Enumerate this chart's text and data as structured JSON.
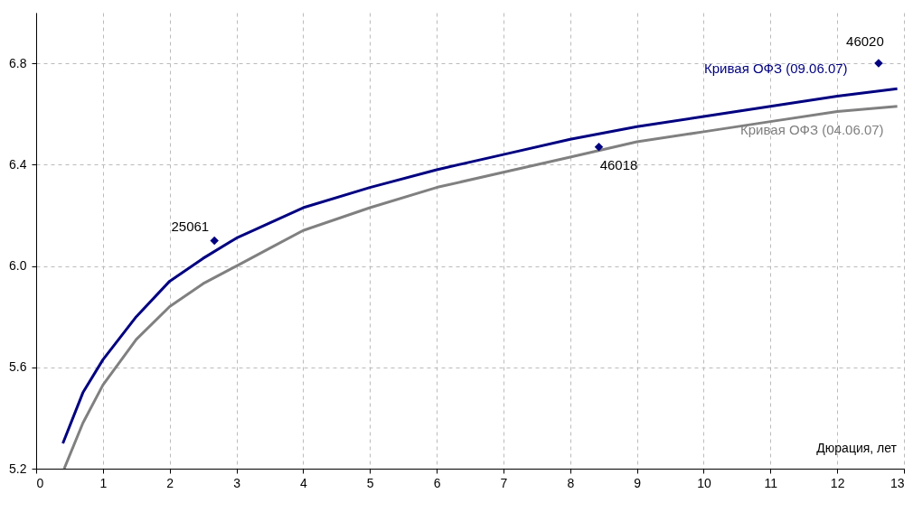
{
  "chart_data": {
    "type": "line",
    "xlabel": "Дюрация, лет",
    "xlim": [
      0,
      13
    ],
    "xticks": [
      0,
      1,
      2,
      3,
      4,
      5,
      6,
      7,
      8,
      9,
      10,
      11,
      12,
      13
    ],
    "ylim": [
      5.2,
      7.0
    ],
    "yticks": [
      5.2,
      5.6,
      {
        "value": 6,
        "label": "6.0"
      },
      6.4,
      6.8
    ],
    "grid": true,
    "legend": false,
    "line_style": "solid",
    "series": [
      {
        "name": "Кривая ОФЗ (09.06.07)",
        "color": "#000080",
        "x": [
          0.4,
          0.7,
          1,
          1.5,
          2,
          2.5,
          3,
          3.5,
          4,
          5,
          6,
          7,
          8,
          9,
          10,
          11,
          12,
          12.9
        ],
        "values": [
          5.3,
          5.5,
          5.63,
          5.8,
          5.94,
          6.03,
          6.11,
          6.17,
          6.23,
          6.31,
          6.38,
          6.44,
          6.5,
          6.55,
          6.59,
          6.63,
          6.67,
          6.7
        ]
      },
      {
        "name": "Кривая ОФЗ (04.06.07)",
        "color": "#808080",
        "x": [
          0.42,
          0.7,
          1,
          1.5,
          2,
          2.5,
          3,
          3.5,
          4,
          5,
          6,
          7,
          8,
          9,
          10,
          11,
          12,
          12.9
        ],
        "values": [
          5.2,
          5.38,
          5.53,
          5.71,
          5.84,
          5.93,
          6.0,
          6.07,
          6.14,
          6.23,
          6.31,
          6.37,
          6.43,
          6.49,
          6.53,
          6.57,
          6.61,
          6.63
        ]
      },
      {
        "type": "scatter",
        "marker": "diamond",
        "color": "#000080",
        "x": [
          2.67,
          8.43,
          12.62
        ],
        "values": [
          6.1,
          6.47,
          6.8
        ]
      }
    ],
    "annotations": [
      {
        "text": "25061",
        "x": 2.67,
        "y": 6.1
      },
      {
        "text": "46018",
        "x": 8.43,
        "y": 6.47
      },
      {
        "text": "46020",
        "x": 12.62,
        "y": 6.8
      }
    ]
  }
}
